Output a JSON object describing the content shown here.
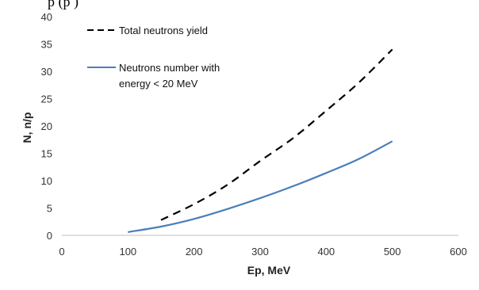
{
  "cropped_top_text": "p                    (p           )",
  "chart_data": {
    "type": "line",
    "title": "",
    "xlabel": "Ep, MeV",
    "ylabel": "N, n/p",
    "xlim": [
      0,
      600
    ],
    "ylim": [
      0,
      40
    ],
    "x_ticks": [
      0,
      100,
      200,
      300,
      400,
      500,
      600
    ],
    "y_ticks": [
      0,
      5,
      10,
      15,
      20,
      25,
      30,
      35,
      40
    ],
    "grid": false,
    "legend_position": "top-left",
    "series": [
      {
        "name": "Total neutrons yield",
        "style": "dashed",
        "color": "#000000",
        "x": [
          150,
          200,
          250,
          300,
          350,
          400,
          450,
          500
        ],
        "y": [
          2.8,
          5.7,
          9.2,
          13.6,
          17.8,
          22.8,
          28.0,
          34.0
        ]
      },
      {
        "name": "Neutrons number with energy < 20 MeV",
        "name_lines": [
          "Neutrons number with",
          "energy < 20 MeV"
        ],
        "style": "solid",
        "color": "#4a7ebb",
        "x": [
          100,
          150,
          200,
          250,
          300,
          350,
          400,
          450,
          500
        ],
        "y": [
          0.6,
          1.6,
          3.0,
          4.8,
          6.8,
          9.0,
          11.4,
          14.0,
          17.2
        ]
      }
    ]
  }
}
